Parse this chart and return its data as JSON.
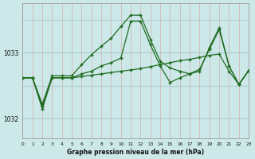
{
  "title": "Graphe pression niveau de la mer (hPa)",
  "bg_color": "#cce8e8",
  "line_color": "#1f6b1f",
  "grid_color_v": "#d4b8b8",
  "grid_color_h": "#aacece",
  "xlim": [
    0,
    23
  ],
  "ylim": [
    1031.7,
    1033.75
  ],
  "yticks": [
    1032,
    1033
  ],
  "xticks": [
    0,
    1,
    2,
    3,
    4,
    5,
    6,
    7,
    8,
    9,
    10,
    11,
    12,
    13,
    14,
    15,
    16,
    17,
    18,
    19,
    20,
    21,
    22,
    23
  ],
  "series1_x": [
    0,
    1,
    2,
    3,
    4,
    5,
    6,
    7,
    8,
    9,
    10,
    11,
    12,
    13,
    14,
    15,
    16,
    17,
    18,
    19,
    20,
    21,
    22,
    23
  ],
  "series1_y": [
    1032.62,
    1032.62,
    1032.22,
    1032.65,
    1032.65,
    1032.65,
    1032.82,
    1032.97,
    1033.1,
    1033.22,
    1033.4,
    1033.57,
    1033.57,
    1033.2,
    1032.87,
    1032.77,
    1032.72,
    1032.68,
    1032.72,
    1033.08,
    1033.38,
    1032.8,
    1032.52,
    1032.73
  ],
  "series2_x": [
    0,
    1,
    2,
    3,
    4,
    5,
    6,
    7,
    8,
    9,
    10,
    11,
    12,
    13,
    14,
    15,
    16,
    17,
    18,
    19,
    20,
    21,
    22,
    23
  ],
  "series2_y": [
    1032.62,
    1032.62,
    1032.15,
    1032.62,
    1032.62,
    1032.62,
    1032.68,
    1032.72,
    1032.8,
    1032.85,
    1032.92,
    1033.48,
    1033.48,
    1033.12,
    1032.8,
    1032.55,
    1032.62,
    1032.68,
    1032.75,
    1033.05,
    1033.35,
    1032.8,
    1032.52,
    1032.73
  ],
  "series3_x": [
    0,
    1,
    2,
    3,
    4,
    5,
    6,
    7,
    8,
    9,
    10,
    11,
    12,
    13,
    14,
    15,
    16,
    17,
    18,
    19,
    20,
    21,
    22,
    23
  ],
  "series3_y": [
    1032.62,
    1032.62,
    1032.18,
    1032.62,
    1032.62,
    1032.62,
    1032.64,
    1032.66,
    1032.68,
    1032.7,
    1032.72,
    1032.74,
    1032.76,
    1032.79,
    1032.82,
    1032.85,
    1032.88,
    1032.9,
    1032.93,
    1032.96,
    1032.98,
    1032.72,
    1032.52,
    1032.73
  ]
}
